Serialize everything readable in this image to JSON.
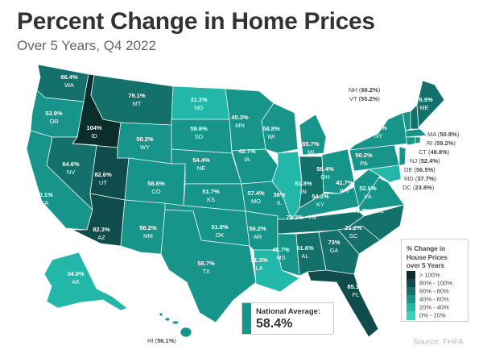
{
  "title": "Percent Change in Home Prices",
  "subtitle": "Over 5 Years, Q4 2022",
  "legend": {
    "title_lines": [
      "% Change in",
      "House Prices",
      "over 5 Years"
    ],
    "items": [
      {
        "label": "> 100%",
        "min": 100,
        "color": "#0b2e2b"
      },
      {
        "label": "80% - 100%",
        "min": 80,
        "color": "#0f4c4b"
      },
      {
        "label": "60% - 80%",
        "min": 60,
        "color": "#13706a"
      },
      {
        "label": "40% - 60%",
        "min": 40,
        "color": "#17958a"
      },
      {
        "label": "20% - 40%",
        "min": 20,
        "color": "#22b7a8"
      },
      {
        "label": "0% - 20%",
        "min": 0,
        "color": "#3fcfc1"
      }
    ]
  },
  "national_average": {
    "label": "National Average:",
    "value": "58.4%"
  },
  "source": "Source: FHFA",
  "states": {
    "WA": {
      "abbr": "WA",
      "value": "66.4%"
    },
    "OR": {
      "abbr": "OR",
      "value": "53.9%"
    },
    "CA": {
      "abbr": "CA",
      "value": "50.1%"
    },
    "ID": {
      "abbr": "ID",
      "value": "104%"
    },
    "NV": {
      "abbr": "NV",
      "value": "64.6%"
    },
    "MT": {
      "abbr": "MT",
      "value": "79.1%"
    },
    "WY": {
      "abbr": "WY",
      "value": "50.2%"
    },
    "UT": {
      "abbr": "UT",
      "value": "82.6%"
    },
    "AZ": {
      "abbr": "AZ",
      "value": "82.3%"
    },
    "CO": {
      "abbr": "CO",
      "value": "58.6%"
    },
    "NM": {
      "abbr": "NM",
      "value": "56.2%"
    },
    "ND": {
      "abbr": "ND",
      "value": "31.1%"
    },
    "SD": {
      "abbr": "SD",
      "value": "59.6%"
    },
    "NE": {
      "abbr": "NE",
      "value": "54.4%"
    },
    "KS": {
      "abbr": "KS",
      "value": "51.7%"
    },
    "OK": {
      "abbr": "OK",
      "value": "51.8%"
    },
    "TX": {
      "abbr": "TX",
      "value": "58.7%"
    },
    "MN": {
      "abbr": "MN",
      "value": "45.3%"
    },
    "IA": {
      "abbr": "IA",
      "value": "42.7%"
    },
    "MO": {
      "abbr": "MO",
      "value": "57.4%"
    },
    "AR": {
      "abbr": "AR",
      "value": "56.2%"
    },
    "LA": {
      "abbr": "LA",
      "value": "31.3%"
    },
    "WI": {
      "abbr": "WI",
      "value": "58.8%"
    },
    "IL": {
      "abbr": "IL",
      "value": "38%"
    },
    "MI": {
      "abbr": "MI",
      "value": "55.7%"
    },
    "IN": {
      "abbr": "IN",
      "value": "61.8%"
    },
    "OH": {
      "abbr": "OH",
      "value": "58.4%"
    },
    "KY": {
      "abbr": "KY",
      "value": "54.2%"
    },
    "TN": {
      "abbr": "TN",
      "value": "79.2%"
    },
    "MS": {
      "abbr": "MS",
      "value": "48.7%"
    },
    "AL": {
      "abbr": "AL",
      "value": "61.6%"
    },
    "GA": {
      "abbr": "GA",
      "value": "73%"
    },
    "FL": {
      "abbr": "FL",
      "value": "85.1%"
    },
    "SC": {
      "abbr": "SC",
      "value": "71.2%"
    },
    "NC": {
      "abbr": "NC",
      "value": "75.7%"
    },
    "VA": {
      "abbr": "VA",
      "value": "52.6%"
    },
    "WV": {
      "abbr": "WV",
      "value": "41.7%"
    },
    "PA": {
      "abbr": "PA",
      "value": "50.2%"
    },
    "NY": {
      "abbr": "NY",
      "value": "51.6%"
    },
    "ME": {
      "abbr": "ME",
      "value": "76.9%"
    },
    "NH": {
      "abbr": "NH",
      "value": "66.2%"
    },
    "VT": {
      "abbr": "VT",
      "value": "55.2%"
    },
    "MA": {
      "abbr": "MA",
      "value": "50.8%"
    },
    "RI": {
      "abbr": "RI",
      "value": "59.2%"
    },
    "CT": {
      "abbr": "CT",
      "value": "48.8%"
    },
    "NJ": {
      "abbr": "NJ",
      "value": "52.4%"
    },
    "DE": {
      "abbr": "DE",
      "value": "56.5%"
    },
    "MD": {
      "abbr": "MD",
      "value": "37.7%"
    },
    "DC": {
      "abbr": "DC",
      "value": "23.8%"
    },
    "AK": {
      "abbr": "AK",
      "value": "34.9%"
    },
    "HI": {
      "abbr": "HI",
      "value": "56.1%"
    }
  }
}
